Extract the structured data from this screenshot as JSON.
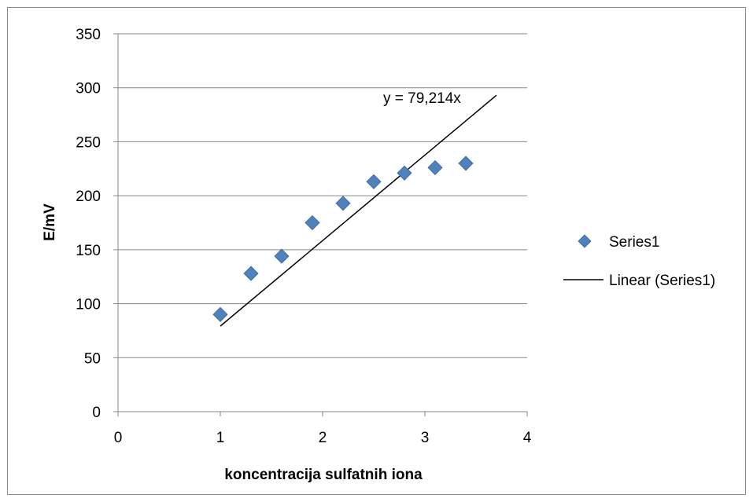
{
  "chart_data": {
    "type": "scatter",
    "title": "",
    "xlabel": "koncentracija sulfatnih iona",
    "ylabel": "E/mV",
    "xlim": [
      0,
      4
    ],
    "ylim": [
      0,
      350
    ],
    "xticks": [
      0,
      1,
      2,
      3,
      4
    ],
    "yticks": [
      0,
      50,
      100,
      150,
      200,
      250,
      300,
      350
    ],
    "grid": "horizontal",
    "legend_position": "right",
    "series": [
      {
        "name": "Series1",
        "marker": "diamond",
        "color": "#4F81BD",
        "x": [
          1.0,
          1.3,
          1.6,
          1.9,
          2.2,
          2.5,
          2.8,
          3.1,
          3.4
        ],
        "y": [
          90,
          128,
          144,
          175,
          193,
          213,
          221,
          226,
          230
        ]
      }
    ],
    "trendline": {
      "name": "Linear (Series1)",
      "type": "linear",
      "slope": 79.214,
      "intercept": 0,
      "x_range": [
        1.0,
        3.7
      ],
      "color": "#000000",
      "equation_label": "y = 79,214x"
    }
  }
}
